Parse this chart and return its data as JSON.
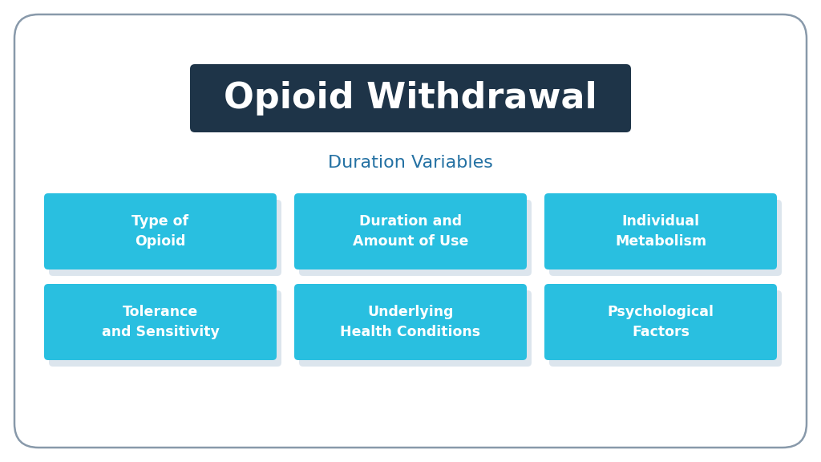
{
  "title_main": "Opioid Withdrawal",
  "title_sub": "Duration Variables",
  "title_bg_color": "#1e3448",
  "title_text_color": "#ffffff",
  "subtitle_text_color": "#2471a3",
  "box_color_top": "#29bfe0",
  "box_color_bottom": "#25b8dc",
  "box_text_color": "#ffffff",
  "bg_color": "#ffffff",
  "border_color": "#8899aa",
  "boxes": [
    [
      "Type of\nOpioid",
      "Duration and\nAmount of Use",
      "Individual\nMetabolism"
    ],
    [
      "Tolerance\nand Sensitivity",
      "Underlying\nHealth Conditions",
      "Psychological\nFactors"
    ]
  ],
  "fig_width": 10.24,
  "fig_height": 5.76,
  "dpi": 100
}
